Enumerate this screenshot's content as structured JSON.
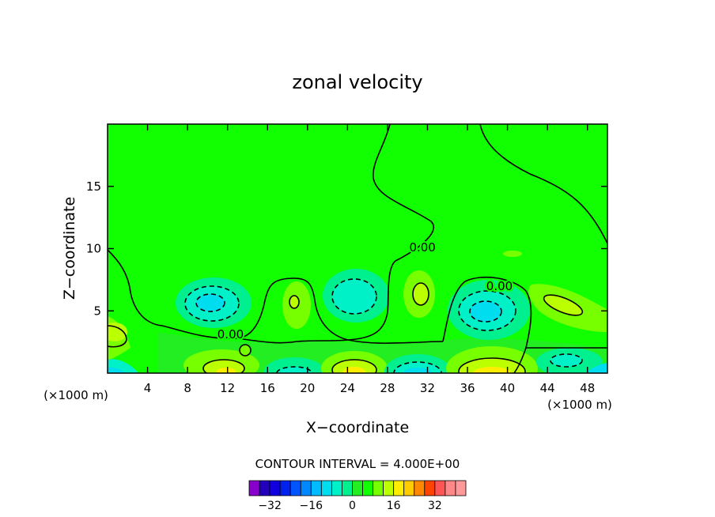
{
  "chart_data": {
    "type": "contour",
    "title": "zonal velocity",
    "xlabel": "X−coordinate",
    "ylabel": "Z−coordinate",
    "x_unit_label": "(×1000 m)",
    "xlim": [
      0,
      50
    ],
    "ylim": [
      0,
      20
    ],
    "x_ticks": [
      4,
      8,
      12,
      16,
      20,
      24,
      28,
      32,
      36,
      40,
      44,
      48
    ],
    "y_ticks": [
      5,
      10,
      15
    ],
    "contour_interval_text": "CONTOUR INTERVAL = 4.000E+00",
    "contour_labels": [
      {
        "text": "0.00",
        "x": 12.3,
        "y": 3.1
      },
      {
        "text": "0.00",
        "x": 31.5,
        "y": 10.1
      },
      {
        "text": "0.00",
        "x": 39.2,
        "y": 7.0
      }
    ],
    "colorbar": {
      "levels": [
        -36,
        -32,
        -28,
        -24,
        -20,
        -16,
        -12,
        -8,
        -4,
        0,
        4,
        8,
        12,
        16,
        20,
        24,
        28,
        32,
        36
      ],
      "colors": [
        "#8800cc",
        "#2200bb",
        "#1100dd",
        "#0022ee",
        "#0055ff",
        "#0088ff",
        "#00bbff",
        "#00ddee",
        "#00f0c8",
        "#00f090",
        "#22ee22",
        "#11ff00",
        "#77ff00",
        "#bbff00",
        "#ffee00",
        "#ffcc00",
        "#ff8800",
        "#ff4400",
        "#ff5555",
        "#ff8888",
        "#ff9999"
      ],
      "tick_labels": [
        "−32",
        "−16",
        "0",
        "16",
        "32"
      ],
      "tick_values": [
        -32,
        -16,
        0,
        16,
        32
      ]
    },
    "features": [
      {
        "kind": "min",
        "x": 10.0,
        "y": 5.5,
        "value": -12
      },
      {
        "kind": "min",
        "x": 25.0,
        "y": 6.2,
        "value": -8
      },
      {
        "kind": "min",
        "x": 38.3,
        "y": 5.0,
        "value": -12
      },
      {
        "kind": "min",
        "x": 30.5,
        "y": 0.5,
        "value": -12
      },
      {
        "kind": "max",
        "x": 12.0,
        "y": 0.9,
        "value": 12
      },
      {
        "kind": "max",
        "x": 25.0,
        "y": 0.8,
        "value": 12
      },
      {
        "kind": "max",
        "x": 38.0,
        "y": 0.5,
        "value": 16
      },
      {
        "kind": "max",
        "x": 30.5,
        "y": 6.5,
        "value": 8
      },
      {
        "kind": "max",
        "x": 18.5,
        "y": 6.0,
        "value": 8
      },
      {
        "kind": "max",
        "x": 45.5,
        "y": 6.0,
        "value": 8
      }
    ]
  }
}
